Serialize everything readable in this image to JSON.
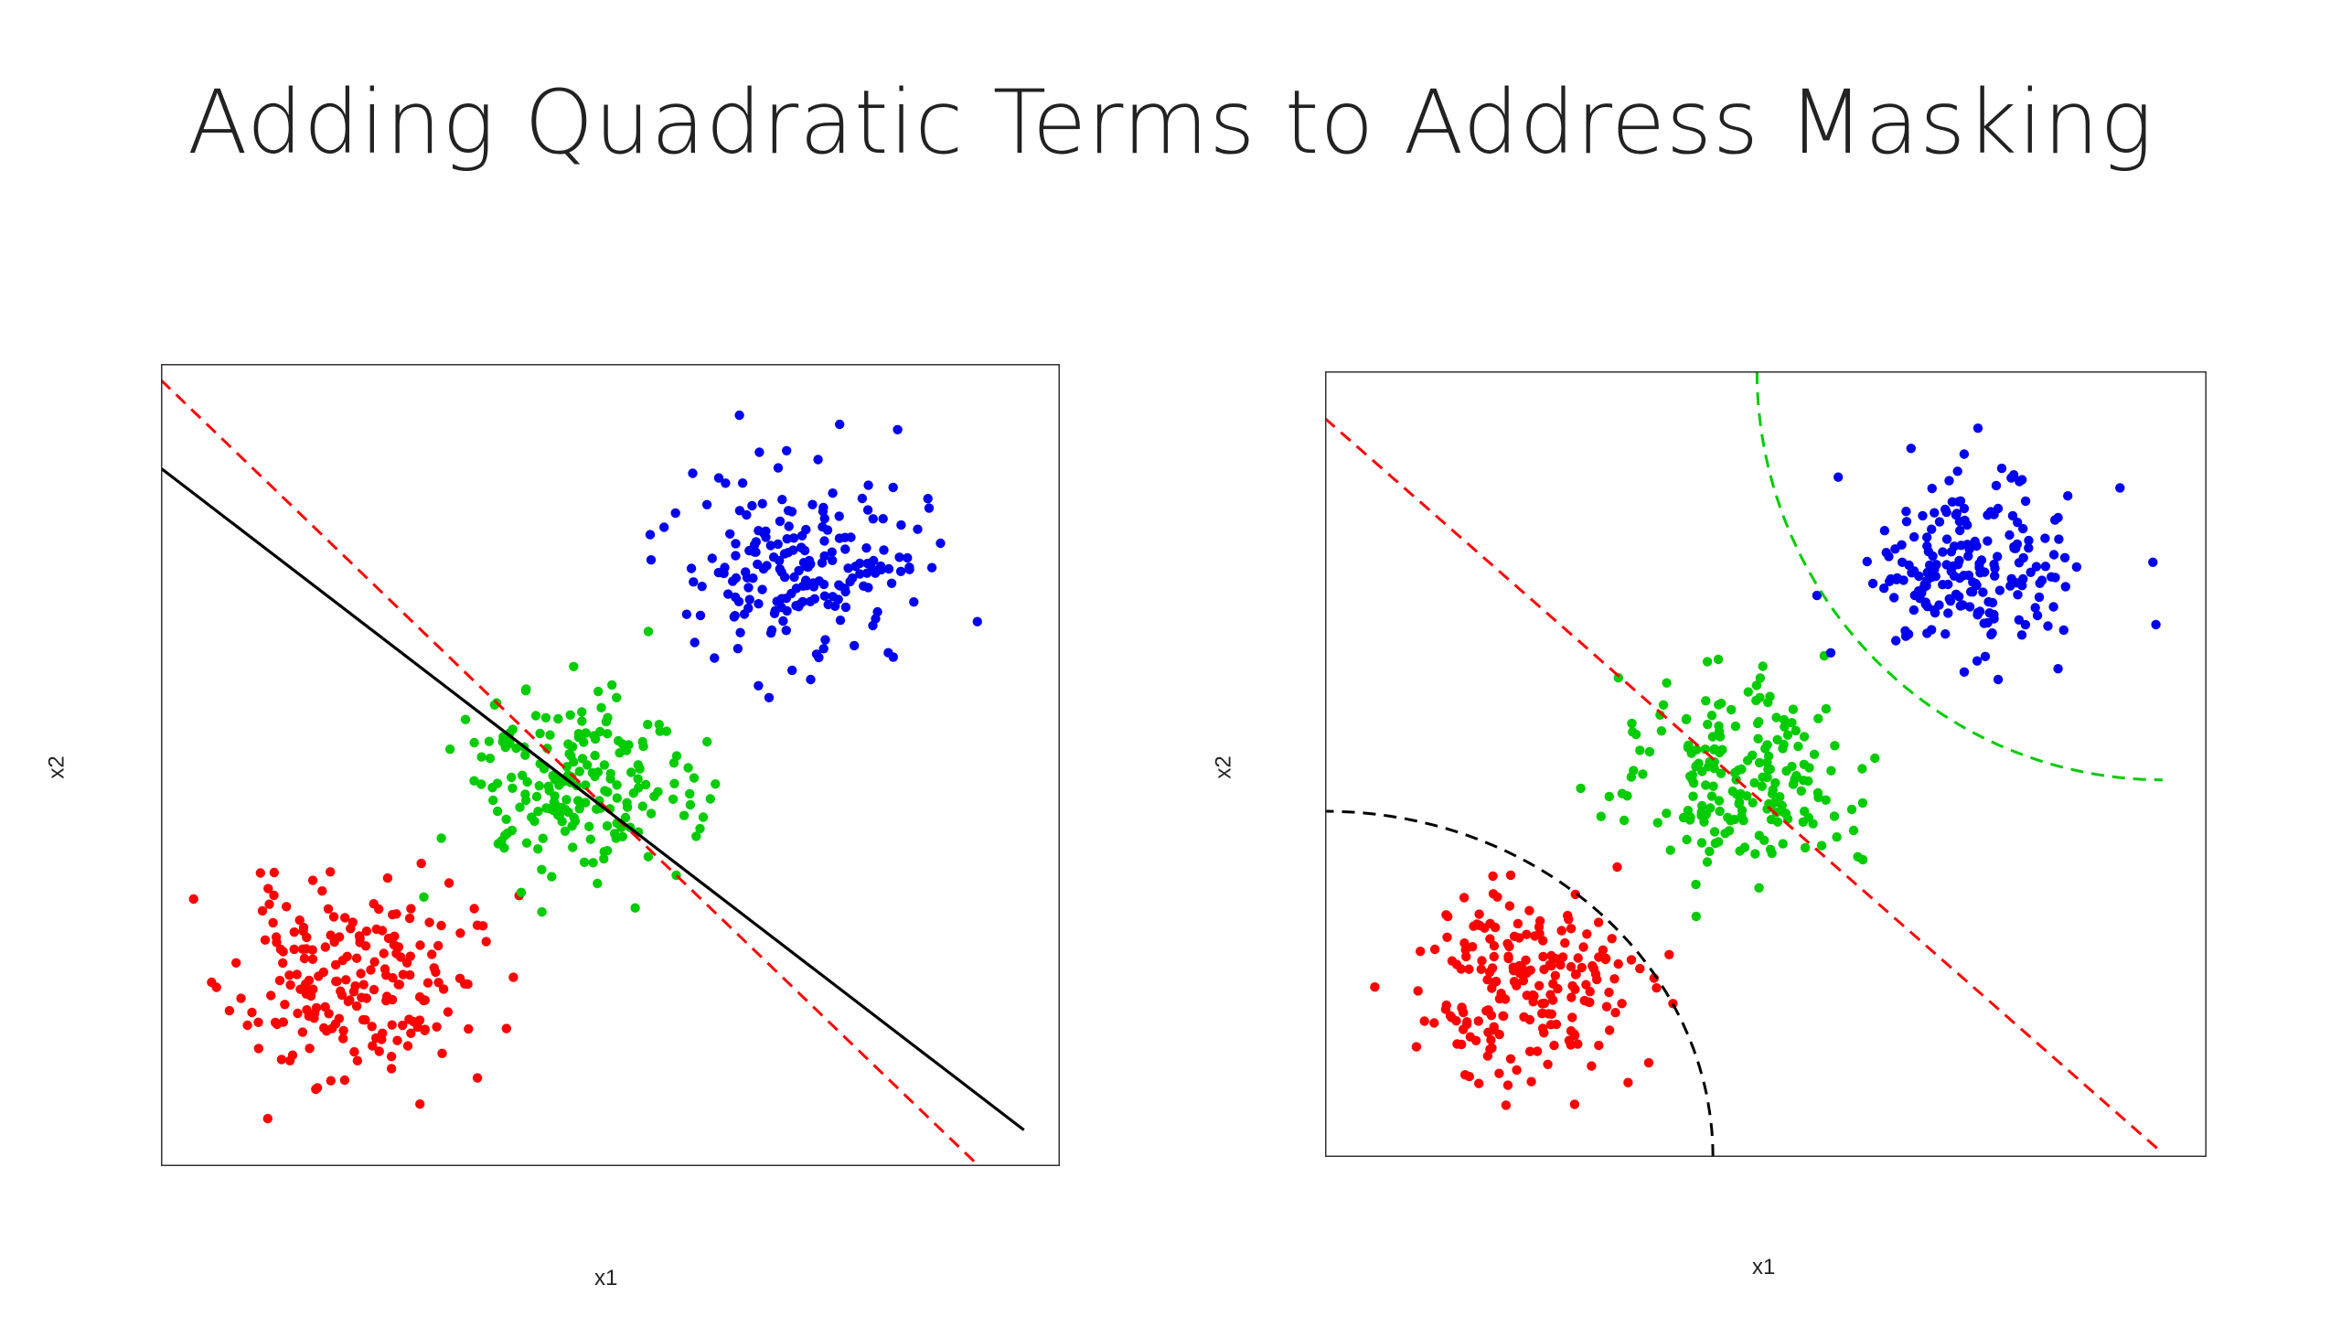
{
  "slide": {
    "title": "Adding Quadratic Terms to Address Masking"
  },
  "colors": {
    "red": "#ff0000",
    "green": "#00cc00",
    "blue": "#0000ee",
    "black": "#000000",
    "frame": "#333333"
  },
  "chart_data": [
    {
      "type": "scatter",
      "title": "",
      "xlabel": "x1",
      "ylabel": "x2",
      "xlim": [
        0,
        10
      ],
      "ylim": [
        0,
        10
      ],
      "grid": false,
      "series": [
        {
          "color": "red",
          "center": [
            2.1,
            2.3
          ],
          "spread": [
            0.65,
            0.6
          ],
          "n": 200,
          "seed": 11
        },
        {
          "color": "green",
          "center": [
            4.6,
            4.7
          ],
          "spread": [
            0.65,
            0.6
          ],
          "n": 200,
          "seed": 23
        },
        {
          "color": "blue",
          "center": [
            7.2,
            7.5
          ],
          "spread": [
            0.65,
            0.6
          ],
          "n": 200,
          "seed": 37
        }
      ],
      "lines": [
        {
          "kind": "segment",
          "color": "red",
          "dash": true,
          "from": [
            0.0,
            9.8
          ],
          "to": [
            9.1,
            0.0
          ]
        },
        {
          "kind": "segment",
          "color": "black",
          "dash": false,
          "from": [
            0.0,
            8.7
          ],
          "to": [
            9.6,
            0.45
          ]
        }
      ]
    },
    {
      "type": "scatter",
      "title": "",
      "xlabel": "x1",
      "ylabel": "x2",
      "xlim": [
        0,
        10
      ],
      "ylim": [
        0,
        10
      ],
      "grid": false,
      "series": [
        {
          "color": "red",
          "center": [
            2.2,
            2.1
          ],
          "spread": [
            0.6,
            0.6
          ],
          "n": 200,
          "seed": 51
        },
        {
          "color": "green",
          "center": [
            4.8,
            4.8
          ],
          "spread": [
            0.6,
            0.6
          ],
          "n": 200,
          "seed": 63
        },
        {
          "color": "blue",
          "center": [
            7.3,
            7.5
          ],
          "spread": [
            0.6,
            0.6
          ],
          "n": 200,
          "seed": 77
        }
      ],
      "lines": [
        {
          "kind": "segment",
          "color": "red",
          "dash": true,
          "from": [
            0.0,
            9.4
          ],
          "to": [
            9.5,
            0.05
          ]
        },
        {
          "kind": "arc",
          "color": "black",
          "dash": true,
          "center": [
            0.0,
            0.0
          ],
          "radii": [
            4.4,
            4.4
          ],
          "angles": [
            0,
            90
          ]
        },
        {
          "kind": "arc",
          "color": "green",
          "dash": true,
          "center": [
            9.5,
            10.0
          ],
          "radii": [
            4.6,
            5.2
          ],
          "angles": [
            180,
            270
          ]
        }
      ]
    }
  ]
}
